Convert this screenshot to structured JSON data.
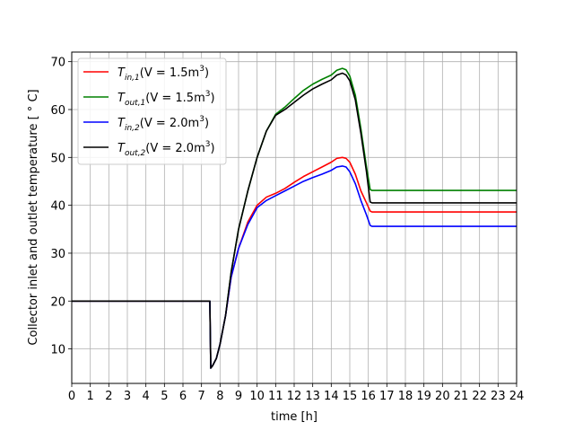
{
  "chart_data": {
    "type": "line",
    "title": "",
    "xlabel": "time [h]",
    "ylabel": "Collector inlet and outlet temperature [$^\\circ$C]",
    "ylabel_display": "Collector inlet and outlet temperature [ ° C]",
    "xlim": [
      0,
      24
    ],
    "ylim": [
      2.8,
      72
    ],
    "xticks": [
      0,
      1,
      2,
      3,
      4,
      5,
      6,
      7,
      8,
      9,
      10,
      11,
      12,
      13,
      14,
      15,
      16,
      17,
      18,
      19,
      20,
      21,
      22,
      23,
      24
    ],
    "yticks": [
      10,
      20,
      30,
      40,
      50,
      60,
      70
    ],
    "grid": true,
    "legend_position": "top-left",
    "series": [
      {
        "name": "T_in,1(V = 1.5m3)",
        "legend": {
          "main": "T",
          "sub": "in,1",
          "mid": "(V = 1.5m",
          "sup": "3",
          "end": ")"
        },
        "color": "#ff0000",
        "x": [
          0,
          7.45,
          7.5,
          7.6,
          7.8,
          8.0,
          8.3,
          8.6,
          9.0,
          9.5,
          10.0,
          10.5,
          11.0,
          11.5,
          12.0,
          12.5,
          13.0,
          13.5,
          14.0,
          14.3,
          14.6,
          14.8,
          15.0,
          15.3,
          15.6,
          15.9,
          16.1,
          16.2,
          24
        ],
        "y": [
          20,
          20,
          6,
          6.5,
          8,
          11,
          17,
          25,
          31,
          36.5,
          40,
          41.7,
          42.5,
          43.5,
          44.8,
          46,
          47,
          48,
          49,
          49.8,
          50,
          49.8,
          49,
          46.5,
          43,
          40.5,
          38.8,
          38.6,
          38.6
        ]
      },
      {
        "name": "T_out,1(V = 1.5m3)",
        "legend": {
          "main": "T",
          "sub": "out,1",
          "mid": "(V = 1.5m",
          "sup": "3",
          "end": ")"
        },
        "color": "#008000",
        "x": [
          0,
          7.45,
          7.5,
          7.6,
          7.8,
          8.0,
          8.3,
          8.6,
          9.0,
          9.5,
          10.0,
          10.5,
          11.0,
          11.5,
          12.0,
          12.5,
          13.0,
          13.5,
          14.0,
          14.3,
          14.6,
          14.8,
          15.0,
          15.3,
          15.6,
          15.9,
          16.1,
          16.2,
          24
        ],
        "y": [
          20,
          20,
          6,
          6.5,
          8,
          11,
          17,
          26,
          35,
          43,
          50,
          55.5,
          59,
          60.5,
          62.3,
          64,
          65.3,
          66.3,
          67.2,
          68.2,
          68.6,
          68.3,
          67,
          63,
          56,
          48,
          43.3,
          43.1,
          43.1
        ]
      },
      {
        "name": "T_in,2(V = 2.0m3)",
        "legend": {
          "main": "T",
          "sub": "in,2",
          "mid": "(V = 2.0m",
          "sup": "3",
          "end": ")"
        },
        "color": "#0000ff",
        "x": [
          0,
          7.45,
          7.5,
          7.6,
          7.8,
          8.0,
          8.3,
          8.6,
          9.0,
          9.5,
          10.0,
          10.5,
          11.0,
          11.5,
          12.0,
          12.5,
          13.0,
          13.5,
          14.0,
          14.3,
          14.6,
          14.8,
          15.0,
          15.3,
          15.6,
          15.9,
          16.1,
          16.2,
          24
        ],
        "y": [
          20,
          20,
          6,
          6.5,
          8,
          11,
          17,
          25,
          31,
          36,
          39.5,
          41,
          42,
          43,
          44,
          45,
          45.8,
          46.5,
          47.3,
          48,
          48.2,
          48,
          47,
          44.5,
          41,
          38,
          35.8,
          35.6,
          35.6
        ]
      },
      {
        "name": "T_out,2(V = 2.0m3)",
        "legend": {
          "main": "T",
          "sub": "out,2",
          "mid": "(V = 2.0m",
          "sup": "3",
          "end": ")"
        },
        "color": "#000000",
        "x": [
          0,
          7.45,
          7.5,
          7.6,
          7.8,
          8.0,
          8.3,
          8.6,
          9.0,
          9.5,
          10.0,
          10.5,
          11.0,
          11.5,
          12.0,
          12.5,
          13.0,
          13.5,
          14.0,
          14.3,
          14.6,
          14.8,
          15.0,
          15.3,
          15.6,
          15.9,
          16.1,
          16.2,
          24
        ],
        "y": [
          20,
          20,
          6,
          6.5,
          8,
          11,
          17,
          26,
          35,
          43,
          50,
          55.5,
          58.8,
          60,
          61.5,
          63,
          64.3,
          65.3,
          66.2,
          67.2,
          67.6,
          67.2,
          66,
          62,
          55,
          47,
          40.7,
          40.5,
          40.5
        ]
      }
    ]
  }
}
